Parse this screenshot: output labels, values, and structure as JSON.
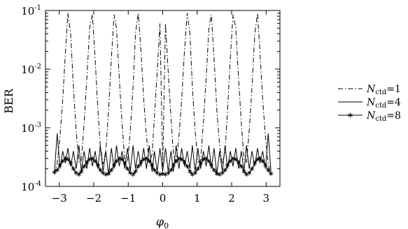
{
  "chart_data": {
    "type": "line",
    "title": "",
    "xlabel": "φ",
    "xlabel_subscript": "0",
    "ylabel": "BER",
    "xlim": [
      -3.4,
      3.4
    ],
    "ylim": [
      0.0001,
      0.1
    ],
    "yscale": "log",
    "grid": false,
    "legend_position": "right",
    "x_ticks": [
      -3,
      -2,
      -1,
      0,
      1,
      2,
      3
    ],
    "x_tick_labels": [
      "−3",
      "−2",
      "−1",
      "0",
      "1",
      "2",
      "3"
    ],
    "y_ticks": [
      0.0001,
      0.001,
      0.01,
      0.1
    ],
    "y_tick_labels": [
      {
        "base": "10",
        "exp": "-4"
      },
      {
        "base": "10",
        "exp": "-3"
      },
      {
        "base": "10",
        "exp": "-2"
      },
      {
        "base": "10",
        "exp": "-1"
      }
    ],
    "series": [
      {
        "name_prefix": "N",
        "name_subscript": "ctd",
        "name_suffix": "=1",
        "style": "dash-dot",
        "color": "#000000",
        "x": [
          -3.14,
          -3.06,
          -2.98,
          -2.9,
          -2.82,
          -2.75,
          -2.67,
          -2.59,
          -2.51,
          -2.43,
          -2.36,
          -2.28,
          -2.2,
          -2.12,
          -2.04,
          -1.96,
          -1.88,
          -1.81,
          -1.73,
          -1.65,
          -1.57,
          -1.49,
          -1.41,
          -1.34,
          -1.26,
          -1.18,
          -1.1,
          -1.02,
          -0.94,
          -0.86,
          -0.79,
          -0.71,
          -0.63,
          -0.55,
          -0.47,
          -0.39,
          -0.31,
          -0.24,
          -0.16,
          -0.08,
          0.0,
          0.08,
          0.16,
          0.24,
          0.31,
          0.39,
          0.47,
          0.55,
          0.63,
          0.71,
          0.79,
          0.86,
          0.94,
          1.02,
          1.1,
          1.18,
          1.26,
          1.34,
          1.41,
          1.49,
          1.57,
          1.65,
          1.73,
          1.81,
          1.88,
          1.96,
          2.04,
          2.12,
          2.2,
          2.28,
          2.36,
          2.43,
          2.51,
          2.59,
          2.67,
          2.75,
          2.82,
          2.9,
          2.98,
          3.06,
          3.14
        ],
        "y": [
          0.00016,
          0.00025,
          0.0007,
          0.003,
          0.02,
          0.09,
          0.04,
          0.005,
          0.0009,
          0.00026,
          0.00028,
          0.0012,
          0.007,
          0.05,
          0.085,
          0.015,
          0.002,
          0.0005,
          0.00024,
          0.0004,
          0.002,
          0.015,
          0.085,
          0.05,
          0.007,
          0.0012,
          0.00028,
          0.00026,
          0.0009,
          0.005,
          0.04,
          0.09,
          0.02,
          0.003,
          0.0007,
          0.00025,
          0.00035,
          0.0015,
          0.009,
          0.06,
          0.00022,
          0.06,
          0.009,
          0.0015,
          0.00035,
          0.00025,
          0.0007,
          0.003,
          0.02,
          0.09,
          0.04,
          0.005,
          0.0009,
          0.00026,
          0.00028,
          0.0012,
          0.007,
          0.05,
          0.085,
          0.015,
          0.002,
          0.0005,
          0.00024,
          0.0004,
          0.002,
          0.015,
          0.085,
          0.05,
          0.007,
          0.0012,
          0.00028,
          0.00026,
          0.0009,
          0.005,
          0.04,
          0.09,
          0.02,
          0.003,
          0.0007,
          0.00025,
          0.00016
        ]
      },
      {
        "name_prefix": "N",
        "name_subscript": "ctd",
        "name_suffix": "=4",
        "style": "solid",
        "color": "#000000",
        "x": [
          -3.14,
          -3.06,
          -2.98,
          -2.9,
          -2.82,
          -2.75,
          -2.67,
          -2.59,
          -2.51,
          -2.43,
          -2.36,
          -2.28,
          -2.2,
          -2.12,
          -2.04,
          -1.96,
          -1.88,
          -1.81,
          -1.73,
          -1.65,
          -1.57,
          -1.49,
          -1.41,
          -1.34,
          -1.26,
          -1.18,
          -1.1,
          -1.02,
          -0.94,
          -0.86,
          -0.79,
          -0.71,
          -0.63,
          -0.55,
          -0.47,
          -0.39,
          -0.31,
          -0.24,
          -0.16,
          -0.08,
          0.0,
          0.08,
          0.16,
          0.24,
          0.31,
          0.39,
          0.47,
          0.55,
          0.63,
          0.71,
          0.79,
          0.86,
          0.94,
          1.02,
          1.1,
          1.18,
          1.26,
          1.34,
          1.41,
          1.49,
          1.57,
          1.65,
          1.73,
          1.81,
          1.88,
          1.96,
          2.04,
          2.12,
          2.2,
          2.28,
          2.36,
          2.43,
          2.51,
          2.59,
          2.67,
          2.75,
          2.82,
          2.9,
          2.98,
          3.06,
          3.14
        ],
        "y": [
          0.00018,
          0.0008,
          0.0002,
          0.0004,
          0.00025,
          0.00045,
          0.00022,
          0.0004,
          0.0002,
          0.0005,
          0.00018,
          0.0004,
          0.0002,
          0.00045,
          0.00022,
          0.0004,
          0.0002,
          0.0005,
          0.00018,
          0.0004,
          0.00016,
          0.00045,
          0.0002,
          0.0005,
          0.00022,
          0.0004,
          0.0002,
          0.00045,
          0.00018,
          0.0005,
          0.0002,
          0.0004,
          0.00022,
          0.00045,
          0.0002,
          0.0005,
          0.00018,
          0.0004,
          0.00018,
          0.00045,
          0.00018,
          0.00045,
          0.00018,
          0.0004,
          0.00018,
          0.0005,
          0.0002,
          0.00045,
          0.00022,
          0.0004,
          0.0002,
          0.0005,
          0.00018,
          0.00045,
          0.0002,
          0.0004,
          0.00022,
          0.0005,
          0.0002,
          0.00045,
          0.00016,
          0.0004,
          0.00018,
          0.0005,
          0.0002,
          0.0004,
          0.00022,
          0.00045,
          0.0002,
          0.0004,
          0.00018,
          0.0005,
          0.0002,
          0.0004,
          0.00022,
          0.00045,
          0.00025,
          0.0004,
          0.0002,
          0.0008,
          0.00018
        ]
      },
      {
        "name_prefix": "N",
        "name_subscript": "ctd",
        "name_suffix": "=8",
        "style": "solid-star",
        "color": "#000000",
        "x": [
          -3.14,
          -3.06,
          -2.98,
          -2.9,
          -2.82,
          -2.75,
          -2.67,
          -2.59,
          -2.51,
          -2.43,
          -2.36,
          -2.28,
          -2.2,
          -2.12,
          -2.04,
          -1.96,
          -1.88,
          -1.81,
          -1.73,
          -1.65,
          -1.57,
          -1.49,
          -1.41,
          -1.34,
          -1.26,
          -1.18,
          -1.1,
          -1.02,
          -0.94,
          -0.86,
          -0.79,
          -0.71,
          -0.63,
          -0.55,
          -0.47,
          -0.39,
          -0.31,
          -0.24,
          -0.16,
          -0.08,
          0.0,
          0.08,
          0.16,
          0.24,
          0.31,
          0.39,
          0.47,
          0.55,
          0.63,
          0.71,
          0.79,
          0.86,
          0.94,
          1.02,
          1.1,
          1.18,
          1.26,
          1.34,
          1.41,
          1.49,
          1.57,
          1.65,
          1.73,
          1.81,
          1.88,
          1.96,
          2.04,
          2.12,
          2.2,
          2.28,
          2.36,
          2.43,
          2.51,
          2.59,
          2.67,
          2.75,
          2.82,
          2.9,
          2.98,
          3.06,
          3.14
        ],
        "y": [
          0.000175,
          0.00019,
          0.00023,
          0.00027,
          0.0003,
          0.00029,
          0.00025,
          0.0002,
          0.00017,
          0.00016,
          0.00018,
          0.00022,
          0.00026,
          0.00029,
          0.0003,
          0.00027,
          0.00023,
          0.00019,
          0.00017,
          0.00016,
          0.000165,
          0.00019,
          0.00023,
          0.00027,
          0.0003,
          0.00029,
          0.00025,
          0.0002,
          0.00017,
          0.00016,
          0.00018,
          0.00022,
          0.00026,
          0.00029,
          0.0003,
          0.00027,
          0.00023,
          0.00019,
          0.00017,
          0.00016,
          0.000165,
          0.00016,
          0.00017,
          0.00019,
          0.00023,
          0.00027,
          0.0003,
          0.00029,
          0.00026,
          0.00022,
          0.00018,
          0.00016,
          0.00017,
          0.0002,
          0.00025,
          0.00029,
          0.0003,
          0.00027,
          0.00023,
          0.00019,
          0.000165,
          0.00016,
          0.00017,
          0.00019,
          0.00023,
          0.00027,
          0.0003,
          0.00029,
          0.00026,
          0.00022,
          0.00018,
          0.00016,
          0.00017,
          0.0002,
          0.00025,
          0.00029,
          0.0003,
          0.00027,
          0.00023,
          0.00019,
          0.000165
        ]
      }
    ]
  }
}
